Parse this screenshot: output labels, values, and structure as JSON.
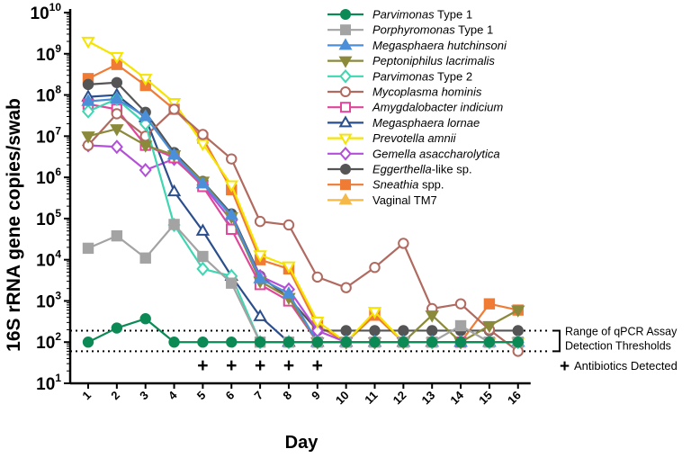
{
  "chart_data": {
    "type": "line",
    "yscale": "log",
    "ylim_exponents": [
      1,
      10
    ],
    "ylabel": "16S rRNA gene copies/swab",
    "xlabel": "Day",
    "x": [
      1,
      2,
      3,
      4,
      5,
      6,
      7,
      8,
      9,
      10,
      11,
      12,
      13,
      14,
      15,
      16
    ],
    "series": [
      {
        "name": "Parvimonas Type 1",
        "italic": "Parvimonas",
        "suffix": " Type 1",
        "color": "#0c8a55",
        "marker": "circle",
        "filled": true,
        "values": [
          100,
          220,
          370,
          100,
          100,
          100,
          100,
          100,
          100,
          100,
          100,
          100,
          100,
          100,
          100,
          100
        ]
      },
      {
        "name": "Porphyromonas Type 1",
        "italic": "Porphyromonas",
        "suffix": " Type 1",
        "color": "#a3a3a3",
        "marker": "square",
        "filled": true,
        "values": [
          19000,
          38000,
          11000,
          72000,
          12000,
          2700,
          100,
          100,
          100,
          100,
          100,
          100,
          100,
          250,
          100,
          100
        ]
      },
      {
        "name": "Megasphaera hutchinsoni",
        "italic": "Megasphaera hutchinsoni",
        "suffix": "",
        "color": "#4a8fd8",
        "marker": "triangle",
        "filled": true,
        "values": [
          70000000,
          80000000,
          30000000,
          3500000,
          700000,
          120000,
          3500,
          1500,
          100,
          100,
          100,
          100,
          100,
          100,
          100,
          100
        ]
      },
      {
        "name": "Peptoniphilus lacrimalis",
        "italic": "Peptoniphilus lacrimalis",
        "suffix": "",
        "color": "#8a8a3a",
        "marker": "triangle-down",
        "filled": true,
        "values": [
          10000000,
          15000000,
          6000000,
          3500000,
          800000,
          110000,
          3000,
          1200,
          100,
          100,
          100,
          100,
          450,
          100,
          250,
          600
        ]
      },
      {
        "name": "Parvimonas Type 2",
        "italic": "Parvimonas",
        "suffix": " Type 2",
        "color": "#3fd6b2",
        "marker": "diamond",
        "filled": false,
        "values": [
          40000000,
          80000000,
          20000000,
          70000,
          6000,
          4000,
          100,
          100,
          100,
          100,
          100,
          100,
          100,
          100,
          100,
          100
        ]
      },
      {
        "name": "Mycoplasma hominis",
        "italic": "Mycoplasma hominis",
        "suffix": "",
        "color": "#b06a60",
        "marker": "circle",
        "filled": false,
        "values": [
          6000000,
          35000000,
          10000000,
          45000000,
          11000000,
          2800000,
          85000,
          70000,
          3800,
          2100,
          6500,
          25000,
          650,
          850,
          200,
          60
        ]
      },
      {
        "name": "Amygdalobacter indicium",
        "italic": "Amygdalobacter indicium",
        "suffix": "",
        "color": "#e0469a",
        "marker": "square",
        "filled": false,
        "values": [
          60000000,
          45000000,
          6000000,
          3000000,
          600000,
          55000,
          2500,
          1000,
          100,
          100,
          100,
          100,
          100,
          100,
          100,
          100
        ]
      },
      {
        "name": "Megasphaera lornae",
        "italic": "Megasphaera lornae",
        "suffix": "",
        "color": "#2b4f8c",
        "marker": "triangle",
        "filled": false,
        "values": [
          90000000,
          100000000,
          28000000,
          450000,
          50000,
          4000,
          420,
          100,
          100,
          100,
          100,
          100,
          100,
          100,
          100,
          100
        ]
      },
      {
        "name": "Prevotella amnii",
        "italic": "Prevotella amnii",
        "suffix": "",
        "color": "#f5e400",
        "marker": "triangle-down",
        "filled": false,
        "values": [
          2000000000,
          850000000,
          250000000,
          65000000,
          6500000,
          650000,
          13000,
          7000,
          320,
          100,
          550,
          100,
          100,
          100,
          100,
          100
        ]
      },
      {
        "name": "Gemella asaccharolytica",
        "italic": "Gemella asaccharolytica",
        "suffix": "",
        "color": "#b34fd8",
        "marker": "diamond",
        "filled": false,
        "values": [
          6000000,
          5500000,
          1500000,
          2800000,
          650000,
          90000,
          4000,
          1900,
          190,
          100,
          100,
          100,
          100,
          100,
          100,
          100
        ]
      },
      {
        "name": "Eggerthella-like sp.",
        "italic": "Eggerthella",
        "suffix": "-like sp.",
        "color": "#555555",
        "marker": "circle",
        "filled": true,
        "values": [
          180000000,
          200000000,
          38000000,
          4000000,
          800000,
          130000,
          4000,
          1200,
          190,
          190,
          190,
          190,
          190,
          190,
          190,
          190
        ]
      },
      {
        "name": "Sneathia spp.",
        "italic": "Sneathia",
        "suffix": " spp.",
        "color": "#f07b35",
        "marker": "square",
        "filled": true,
        "values": [
          250000000,
          550000000,
          170000000,
          45000000,
          9000000,
          500000,
          10000,
          6000,
          250,
          100,
          450,
          100,
          100,
          100,
          850,
          600
        ]
      },
      {
        "name": "Vaginal TM7",
        "italic": "",
        "suffix": "Vaginal TM7",
        "color": "#f5b94a",
        "marker": "triangle",
        "filled": true,
        "values": [
          null,
          null,
          null,
          null,
          null,
          null,
          null,
          null,
          null,
          null,
          null,
          null,
          null,
          null,
          null,
          null
        ]
      }
    ],
    "threshold_low": 60,
    "threshold_high": 190,
    "threshold_label_1": "Range of qPCR Assay",
    "threshold_label_2": "Detection Thresholds",
    "antibiotics_days": [
      5,
      6,
      7,
      8,
      9
    ],
    "antibiotics_symbol": "+",
    "antibiotics_label": "Antibiotics Detected"
  }
}
